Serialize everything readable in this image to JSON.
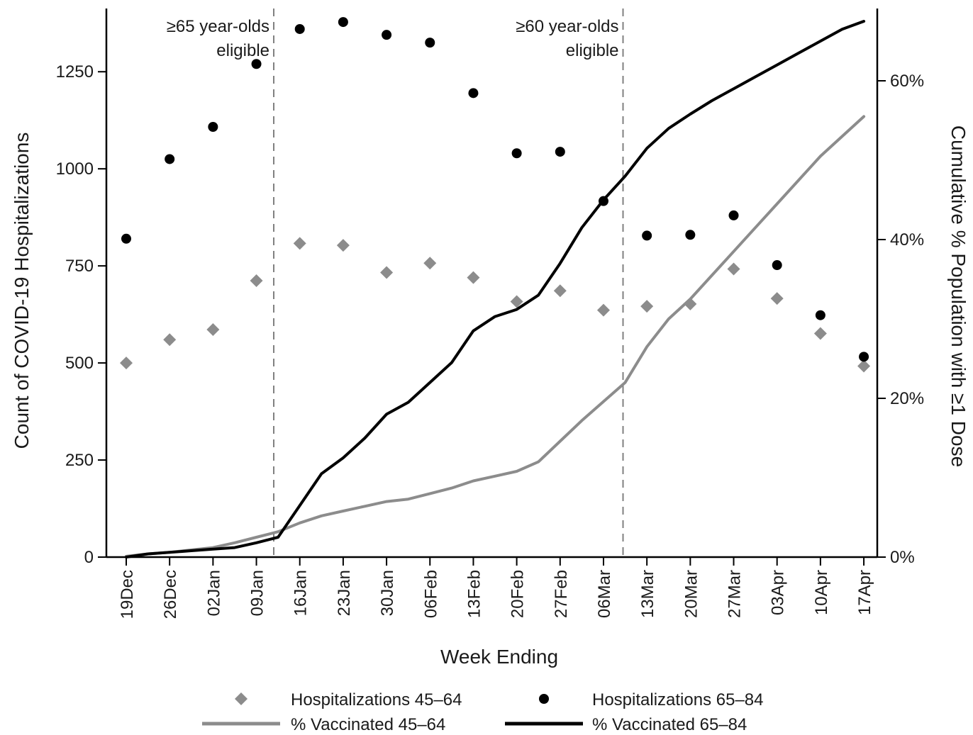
{
  "chart_data": {
    "type": "line",
    "xlabel": "Week Ending",
    "ylabel_left": "Count of COVID-19 Hospitalizations",
    "ylabel_right": "Cumulative % Population with ≥1 Dose",
    "categories": [
      "19Dec",
      "26Dec",
      "02Jan",
      "09Jan",
      "16Jan",
      "23Jan",
      "30Jan",
      "06Feb",
      "13Feb",
      "20Feb",
      "27Feb",
      "06Mar",
      "13Mar",
      "20Mar",
      "27Mar",
      "03Apr",
      "10Apr",
      "17Apr"
    ],
    "ylim_left": [
      0,
      1380
    ],
    "ylim_right": [
      0,
      67.5
    ],
    "yticks_left": [
      "0",
      "250",
      "500",
      "750",
      "1000",
      "1250"
    ],
    "yticks_left_values": [
      0,
      250,
      500,
      750,
      1000,
      1250
    ],
    "yticks_right": [
      "0%",
      "20%",
      "40%",
      "60%"
    ],
    "yticks_right_values": [
      0,
      20,
      40,
      60
    ],
    "colors": {
      "series_4564": "#8c8c8c",
      "series_6584": "#000000",
      "vline": "#808080"
    },
    "scatter_series": [
      {
        "name": "Hospitalizations 45–64",
        "marker": "diamond",
        "values": [
          500,
          560,
          586,
          712,
          808,
          803,
          733,
          757,
          720,
          658,
          686,
          636,
          646,
          652,
          742,
          666,
          576,
          492
        ]
      },
      {
        "name": "Hospitalizations 65–84",
        "marker": "circle",
        "values": [
          820,
          1025,
          1108,
          1270,
          1360,
          1378,
          1345,
          1325,
          1195,
          1040,
          1044,
          917,
          828,
          830,
          880,
          752,
          623,
          516
        ]
      }
    ],
    "line_series": [
      {
        "name": "% Vaccinated 45–64",
        "x": [
          0,
          0.5,
          1,
          1.5,
          2,
          2.5,
          3,
          3.5,
          4,
          4.5,
          5,
          5.5,
          6,
          6.5,
          7,
          7.5,
          8,
          8.5,
          9,
          9.5,
          10,
          10.5,
          11,
          11.5,
          12,
          12.5,
          13,
          13.5,
          14,
          14.5,
          15,
          15.5,
          16,
          16.5,
          17
        ],
        "y": [
          0.1,
          0.4,
          0.6,
          0.9,
          1.2,
          1.8,
          2.5,
          3.2,
          4.3,
          5.2,
          5.8,
          6.4,
          7.0,
          7.3,
          8.0,
          8.7,
          9.6,
          10.2,
          10.8,
          12.0,
          14.6,
          17.2,
          19.6,
          22.0,
          26.5,
          30.0,
          32.5,
          35.5,
          38.5,
          41.5,
          44.5,
          47.5,
          50.5,
          53.0,
          55.5
        ]
      },
      {
        "name": "% Vaccinated 65–84",
        "x": [
          0,
          0.5,
          1,
          1.5,
          2,
          2.5,
          3,
          3.5,
          4,
          4.5,
          5,
          5.5,
          6,
          6.5,
          7,
          7.5,
          8,
          8.5,
          9,
          9.5,
          10,
          10.5,
          11,
          11.5,
          12,
          12.5,
          13,
          13.5,
          14,
          14.5,
          15,
          15.5,
          16,
          16.5,
          17
        ],
        "y": [
          0.0,
          0.4,
          0.6,
          0.8,
          1.0,
          1.2,
          1.8,
          2.5,
          6.5,
          10.5,
          12.5,
          15.0,
          18.0,
          19.5,
          22.0,
          24.5,
          28.5,
          30.3,
          31.2,
          33.0,
          37.0,
          41.5,
          45.0,
          48.0,
          51.5,
          54.0,
          55.8,
          57.5,
          59.0,
          60.5,
          62.0,
          63.5,
          65.0,
          66.5,
          67.5
        ]
      }
    ],
    "vlines": [
      {
        "x": 3.4,
        "label_line1": "≥65 year-olds",
        "label_line2": "eligible"
      },
      {
        "x": 11.45,
        "label_line1": "≥60 year-olds",
        "label_line2": "eligible"
      }
    ],
    "legend": {
      "position": "bottom",
      "items": [
        {
          "label": "Hospitalizations 45–64",
          "kind": "diamond",
          "color": "#8c8c8c"
        },
        {
          "label": "Hospitalizations 65–84",
          "kind": "circle",
          "color": "#000000"
        },
        {
          "label": "% Vaccinated 45–64",
          "kind": "line",
          "color": "#8c8c8c"
        },
        {
          "label": "% Vaccinated 65–84",
          "kind": "line",
          "color": "#000000"
        }
      ]
    }
  }
}
